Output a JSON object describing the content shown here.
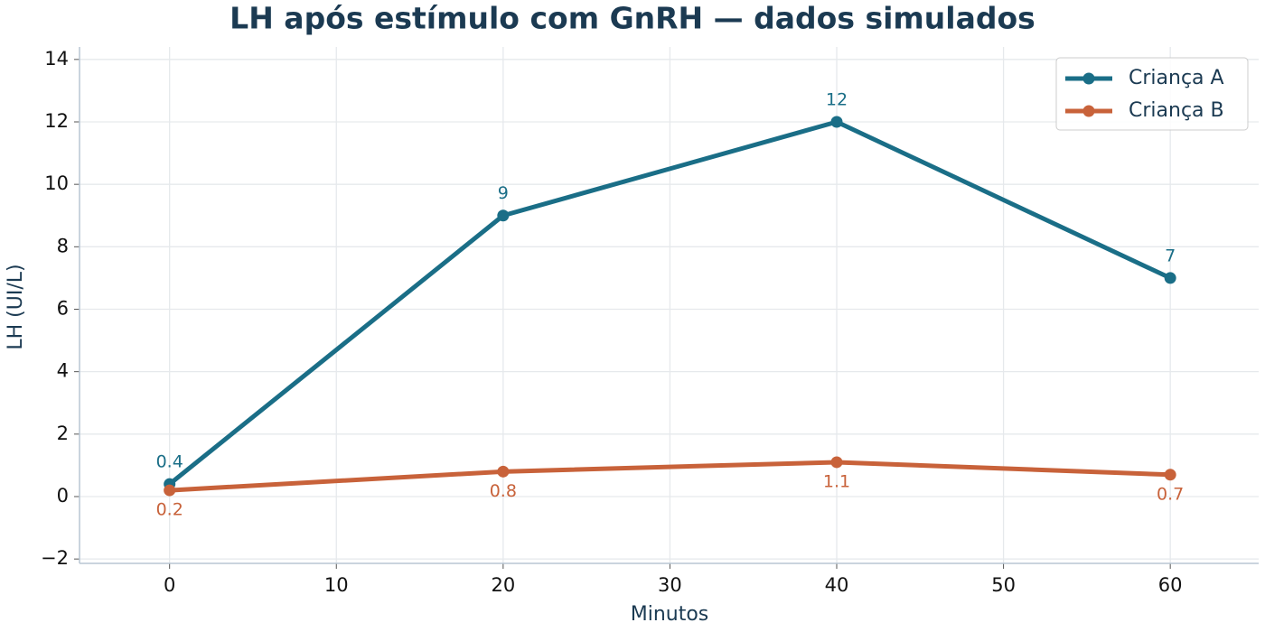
{
  "chart_data": {
    "type": "line",
    "title": "LH após estímulo com GnRH — dados simulados",
    "x_label": "Minutos",
    "y_label": "LH (UI/L)",
    "x": [
      0,
      20,
      40,
      60
    ],
    "series": [
      {
        "name": "Criança A",
        "color": "#1a6e87",
        "values": [
          0.4,
          9,
          12,
          7
        ],
        "label_position": "above"
      },
      {
        "name": "Criança B",
        "color": "#c8623a",
        "values": [
          0.2,
          0.8,
          1.1,
          0.7
        ],
        "label_position": "below"
      }
    ],
    "xlim": [
      -5.4,
      65.3
    ],
    "ylim": [
      -2.14,
      14.4
    ],
    "xticks": [
      0,
      10,
      20,
      30,
      40,
      50,
      60
    ],
    "yticks": [
      {
        "value": -2,
        "label": "−2"
      },
      0,
      2,
      4,
      6,
      8,
      10,
      12,
      14
    ],
    "grid": true,
    "legend": "upper-right"
  }
}
